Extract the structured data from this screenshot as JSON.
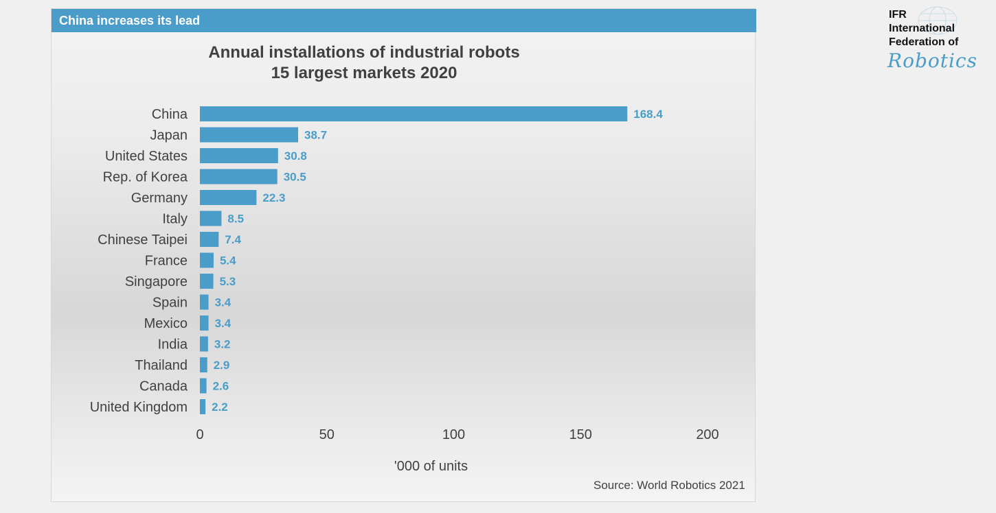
{
  "header": {
    "title": "China increases its lead"
  },
  "logo": {
    "line1": "IFR",
    "line2": "International",
    "line3": "Federation of",
    "line4": "Robotics"
  },
  "source": "Source: World Robotics 2021",
  "colors": {
    "bar": "#4a9cc9",
    "label": "#4a9cc9",
    "header": "#4a9cc9"
  },
  "chart_data": {
    "type": "bar",
    "orientation": "horizontal",
    "title": "Annual installations of industrial robots",
    "subtitle": "15 largest markets 2020",
    "xlabel": "'000 of units",
    "ylabel": "",
    "xlim": [
      0,
      200
    ],
    "xticks": [
      0,
      50,
      100,
      150,
      200
    ],
    "grid": false,
    "categories": [
      "China",
      "Japan",
      "United States",
      "Rep. of Korea",
      "Germany",
      "Italy",
      "Chinese Taipei",
      "France",
      "Singapore",
      "Spain",
      "Mexico",
      "India",
      "Thailand",
      "Canada",
      "United Kingdom"
    ],
    "values": [
      168.4,
      38.7,
      30.8,
      30.5,
      22.3,
      8.5,
      7.4,
      5.4,
      5.3,
      3.4,
      3.4,
      3.2,
      2.9,
      2.6,
      2.2
    ],
    "value_labels": [
      "168.4",
      "38.7",
      "30.8",
      "30.5",
      "22.3",
      "8.5",
      "7.4",
      "5.4",
      "5.3",
      "3.4",
      "3.4",
      "3.2",
      "2.9",
      "2.6",
      "2.2"
    ]
  }
}
